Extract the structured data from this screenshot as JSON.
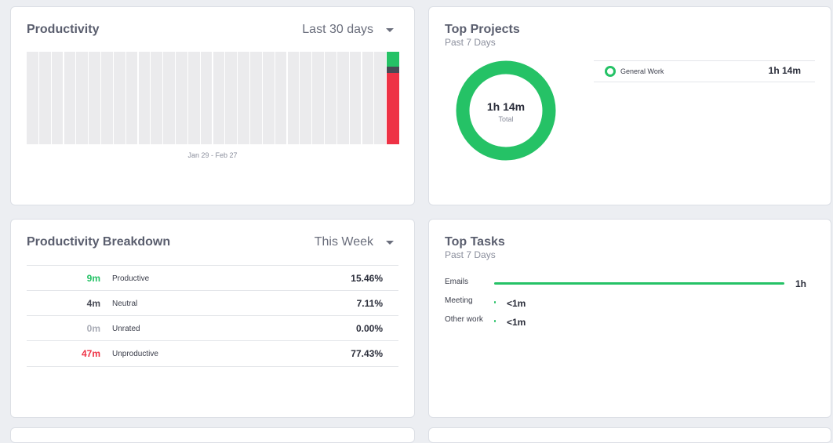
{
  "productivity": {
    "title": "Productivity",
    "range_label": "Last 30 days",
    "date_range": "Jan 29 - Feb 27",
    "days": 30,
    "last_day": {
      "productive_fraction": 0.16,
      "neutral_fraction": 0.07,
      "unproductive_fraction": 0.77
    },
    "colors": {
      "empty": "#ebebed",
      "productive": "#25c266",
      "neutral": "#484a55",
      "unproductive": "#ee3245"
    }
  },
  "top_projects": {
    "title": "Top Projects",
    "subtitle": "Past 7 Days",
    "total_value": "1h 14m",
    "total_label": "Total",
    "ring_color": "#25c266",
    "items": [
      {
        "name": "General Work",
        "time": "1h 14m"
      }
    ]
  },
  "breakdown": {
    "title": "Productivity Breakdown",
    "range_label": "This Week",
    "rows": [
      {
        "time": "9m",
        "label": "Productive",
        "pct": "15.46%",
        "color": "#25c266"
      },
      {
        "time": "4m",
        "label": "Neutral",
        "pct": "7.11%",
        "color": "#484a55"
      },
      {
        "time": "0m",
        "label": "Unrated",
        "pct": "0.00%",
        "color": "#a9acb6"
      },
      {
        "time": "47m",
        "label": "Unproductive",
        "pct": "77.43%",
        "color": "#ee3245"
      }
    ]
  },
  "top_tasks": {
    "title": "Top Tasks",
    "subtitle": "Past 7 Days",
    "items": [
      {
        "name": "Emails",
        "time": "1h",
        "fraction": 1.0
      },
      {
        "name": "Meeting",
        "time": "<1m",
        "fraction": 0.005
      },
      {
        "name": "Other work",
        "time": "<1m",
        "fraction": 0.005
      }
    ]
  }
}
